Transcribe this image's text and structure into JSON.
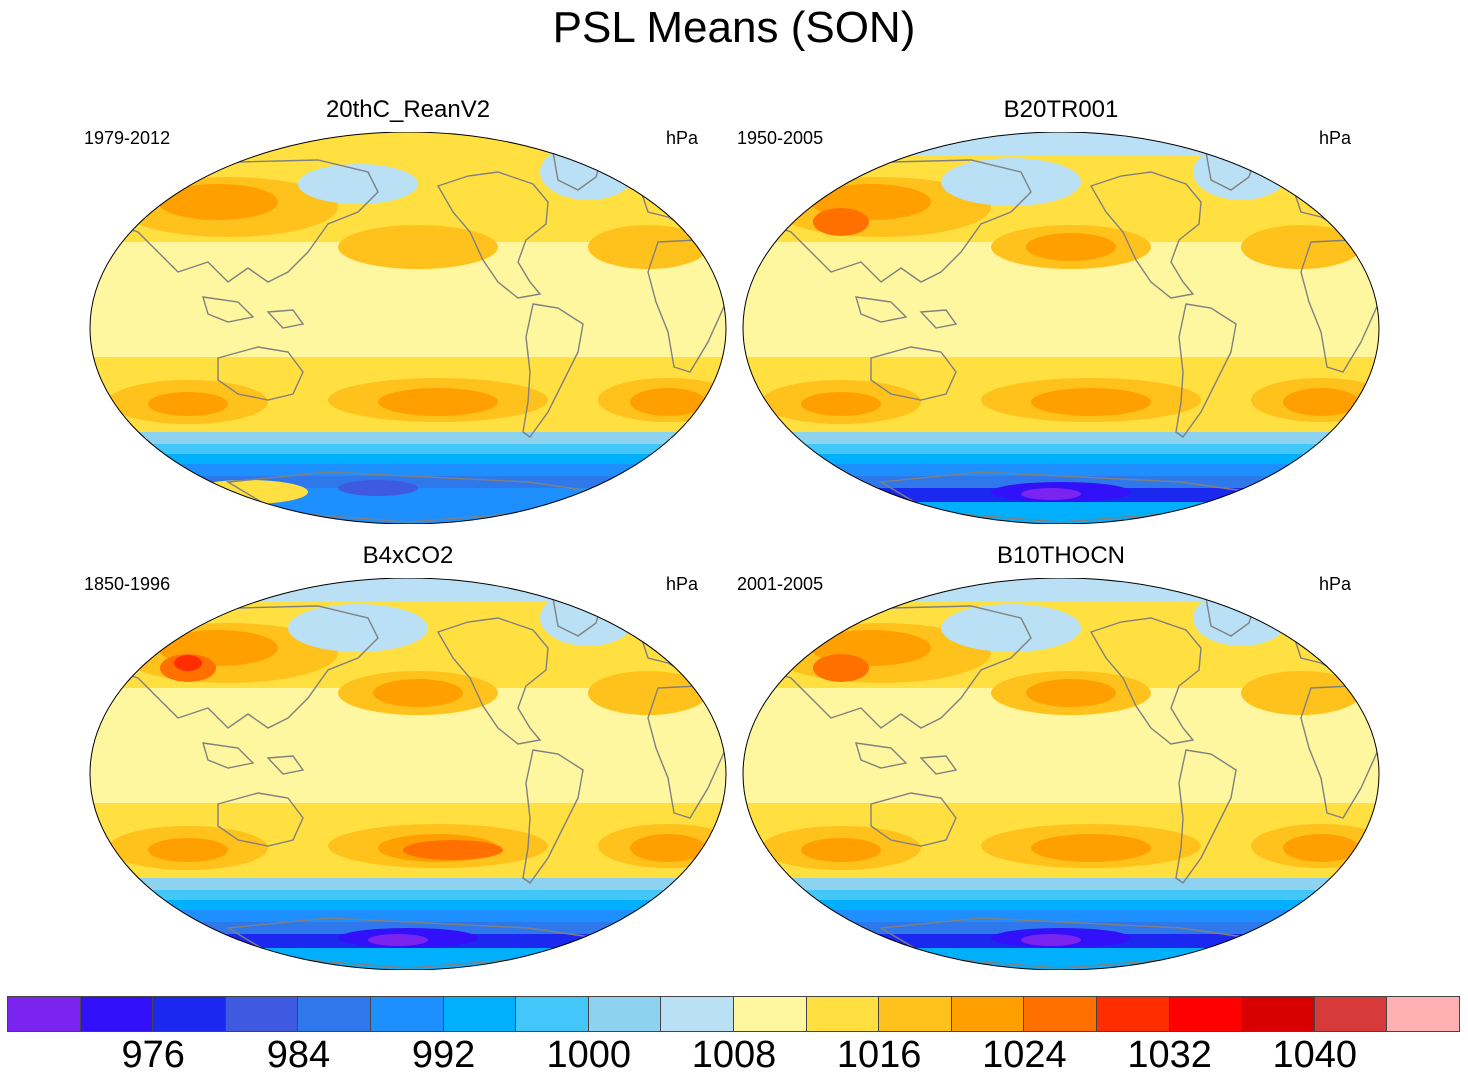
{
  "main_title": "PSL Means (SON)",
  "panels": [
    {
      "title": "20thC_ReanV2",
      "period": "1979-2012",
      "units": "hPa",
      "variant": "reanalysis"
    },
    {
      "title": "B20TR001",
      "period": "1950-2005",
      "units": "hPa",
      "variant": "model"
    },
    {
      "title": "B4xCO2",
      "period": "1850-1996",
      "units": "hPa",
      "variant": "co2"
    },
    {
      "title": "B10THOCN",
      "period": "2001-2005",
      "units": "hPa",
      "variant": "model"
    }
  ],
  "colorbar": {
    "colors": [
      "#7b24f0",
      "#3210fa",
      "#1a28f0",
      "#3d5ae0",
      "#2f78ec",
      "#1d8fff",
      "#00b0ff",
      "#43c6fa",
      "#8dd2ef",
      "#b9e0f5",
      "#fff6a0",
      "#ffe040",
      "#ffc21c",
      "#ffa000",
      "#ff7000",
      "#ff2d00",
      "#ff0000",
      "#d80000",
      "#d63a3a",
      "#ffb0b0"
    ],
    "labels": [
      "976",
      "984",
      "992",
      "1000",
      "1008",
      "1016",
      "1024",
      "1032",
      "1040"
    ],
    "label_after_index": [
      1,
      3,
      5,
      7,
      9,
      11,
      13,
      15,
      17
    ]
  },
  "map_colors": {
    "base": "#fff6a0",
    "high1": "#ffe040",
    "high2": "#ffc21c",
    "high3": "#ffa000",
    "high4": "#ff7000",
    "high5": "#ff2d00",
    "low1": "#b9e0f5",
    "low2": "#8dd2ef",
    "low3": "#43c6fa",
    "low4": "#00b0ff",
    "low5": "#1d8fff",
    "low6": "#2f78ec",
    "low7": "#3d5ae0",
    "low8": "#1a28f0",
    "low9": "#3210fa",
    "low10": "#7b24f0",
    "coast": "#808080"
  }
}
